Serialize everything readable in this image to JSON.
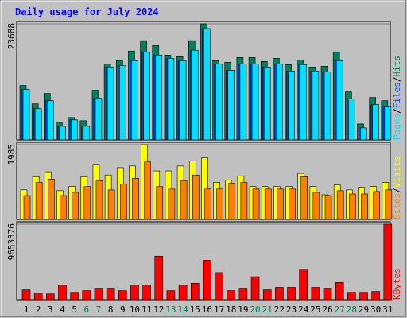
{
  "chart_data": [
    {
      "type": "bar",
      "title": "Daily usage for July 2024",
      "legend_separator": "/",
      "ylim": [
        0,
        23688
      ],
      "yticks": [
        23688
      ],
      "series": [
        {
          "name": "Hits",
          "color": "#00805c",
          "values": [
            11109,
            7351,
            9475,
            3594,
            4574,
            3921,
            10129,
            15520,
            16173,
            18134,
            20257,
            19277,
            17317,
            16990,
            20257,
            23688,
            16173,
            15847,
            16827,
            16827,
            16010,
            16663,
            15356,
            16337,
            14866,
            15030,
            17970,
            9802,
            3267,
            8658,
            8005
          ]
        },
        {
          "name": "Files",
          "color": "#0040ff",
          "values": [
            10292,
            6371,
            8005,
            2777,
            4084,
            2777,
            8495,
            14866,
            15193,
            16173,
            17970,
            17317,
            16663,
            16173,
            18297,
            22707,
            15520,
            14213,
            15520,
            15520,
            14866,
            15520,
            14049,
            15356,
            14049,
            13886,
            16173,
            8332,
            2450,
            7188,
            6861
          ]
        },
        {
          "name": "Pages",
          "color": "#00e0ff",
          "values": [
            10292,
            6371,
            8005,
            2777,
            4084,
            2777,
            8495,
            14866,
            15193,
            16173,
            17970,
            17317,
            16663,
            16173,
            18297,
            22707,
            15520,
            14213,
            15520,
            15520,
            14866,
            15520,
            14049,
            15356,
            14049,
            13886,
            16173,
            8332,
            2450,
            7188,
            6861
          ]
        }
      ]
    },
    {
      "type": "bar",
      "legend_separator": "/",
      "ylim": [
        0,
        1985
      ],
      "yticks": [
        1985
      ],
      "series": [
        {
          "name": "Visits",
          "color": "#ffff00",
          "values": [
            785,
            1134,
            1265,
            763,
            872,
            1134,
            1461,
            1178,
            1374,
            1418,
            1985,
            1287,
            1287,
            1418,
            1549,
            1636,
            982,
            1047,
            1156,
            872,
            872,
            872,
            872,
            1222,
            872,
            654,
            916,
            785,
            851,
            872,
            982
          ]
        },
        {
          "name": "Sites",
          "color": "#ff8000",
          "values": [
            633,
            982,
            1069,
            633,
            720,
            872,
            1025,
            785,
            938,
            1091,
            1527,
            872,
            807,
            1025,
            1178,
            807,
            807,
            960,
            982,
            807,
            807,
            807,
            807,
            1134,
            720,
            633,
            763,
            676,
            676,
            742,
            785
          ]
        }
      ]
    },
    {
      "type": "bar",
      "ylim": [
        0,
        9653376
      ],
      "yticks": [
        9653376
      ],
      "categories": [
        "1",
        "2",
        "3",
        "4",
        "5",
        "6",
        "7",
        "8",
        "9",
        "10",
        "11",
        "12",
        "13",
        "14",
        "15",
        "16",
        "17",
        "18",
        "19",
        "20",
        "21",
        "22",
        "23",
        "24",
        "25",
        "26",
        "27",
        "28",
        "29",
        "30",
        "31"
      ],
      "category_colors": [
        "#000000",
        "#000000",
        "#000000",
        "#000000",
        "#000000",
        "#00805c",
        "#00805c",
        "#000000",
        "#000000",
        "#000000",
        "#000000",
        "#000000",
        "#00805c",
        "#00805c",
        "#000000",
        "#000000",
        "#000000",
        "#000000",
        "#000000",
        "#00805c",
        "#00805c",
        "#000000",
        "#000000",
        "#000000",
        "#000000",
        "#000000",
        "#00805c",
        "#00805c",
        "#000000",
        "#000000",
        "#000000"
      ],
      "series": [
        {
          "name": "KBytes",
          "color": "#ff0000",
          "values": [
            1259136,
            839424,
            734496,
            1888700,
            944352,
            1154208,
            1469000,
            1469000,
            1154208,
            1888700,
            1888700,
            5561000,
            1154208,
            1888700,
            2098560,
            5036544,
            3462624,
            1154208,
            1469000,
            2937984,
            1259136,
            1573920,
            1573920,
            3882336,
            1573920,
            1469000,
            2203488,
            944352,
            944352,
            1049280,
            9653376
          ]
        }
      ]
    }
  ]
}
